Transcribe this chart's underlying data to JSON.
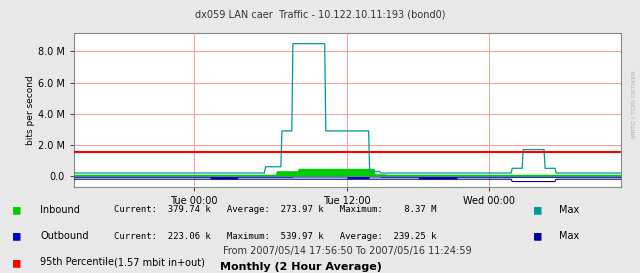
{
  "title": "dx059 LAN caer  Traffic - 10.122.10.11:193 (bond0)",
  "ylabel": "bits per second",
  "xlabel_bottom": "From 2007/05/14 17:56:50 To 2007/05/16 11:24:59",
  "footer": "Monthly (2 Hour Average)",
  "xtick_labels": [
    "Tue 00:00",
    "Tue 12:00",
    "Wed 00:00"
  ],
  "xtick_positions": [
    0.22,
    0.5,
    0.76
  ],
  "ytick_values": [
    0,
    2000000,
    4000000,
    6000000,
    8000000
  ],
  "ymax": 9200000,
  "ymin": -700000,
  "bg_color": "#e8e8e8",
  "plot_bg_color": "#e8e8e8",
  "chart_bg_color": "#ffffff",
  "grid_color": "#ff9999",
  "inbound_area_color": "#00cc00",
  "inbound_max_color": "#009999",
  "outbound_area_color": "#0000cc",
  "outbound_max_color": "#000099",
  "percentile_color": "#ff0000",
  "percentile_value": 1570000,
  "watermark": "MRTG / TOBI OETIKER",
  "legend_inbound_label": "Inbound",
  "legend_inbound_text": "Current:  379.74 k   Average:  273.97 k   Maximum:    8.37 M",
  "legend_inbound_max_label": "Max",
  "legend_outbound_label": "Outbound",
  "legend_outbound_text": "Current:  223.06 k   Maximum:  539.97 k   Average:  239.25 k",
  "legend_outbound_max_label": "Max",
  "legend_percentile_label": "95th Percentile",
  "legend_percentile_text": "(1.57 mbit in+out)"
}
